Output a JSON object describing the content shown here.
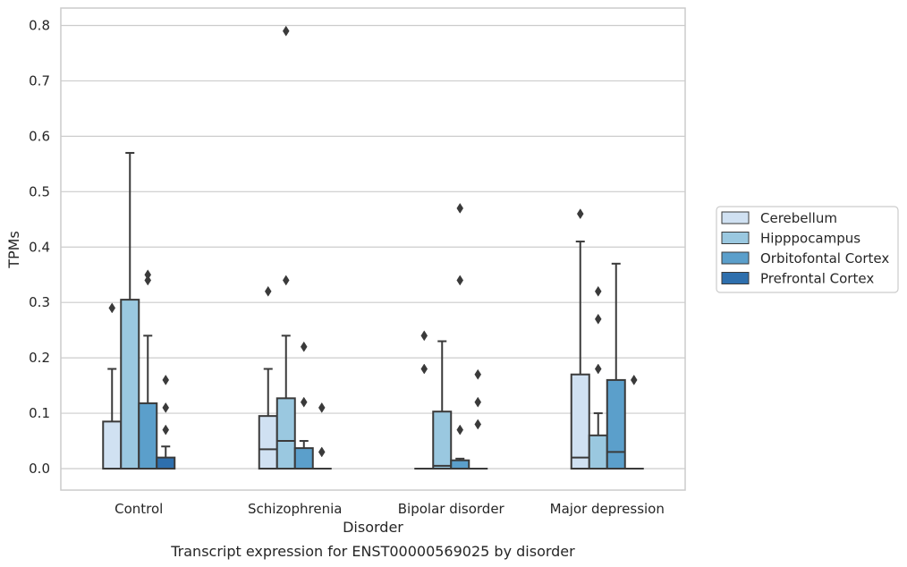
{
  "chart_data": {
    "type": "box",
    "xlabel": "Disorder",
    "ylabel": "TPMs",
    "caption": "Transcript expression for ENST00000569025 by disorder",
    "ylim": [
      -0.04,
      0.83
    ],
    "yticks": [
      "0.0",
      "0.1",
      "0.2",
      "0.3",
      "0.4",
      "0.5",
      "0.6",
      "0.7",
      "0.8"
    ],
    "grid": true,
    "legend_position": "right",
    "categories": [
      "Control",
      "Schizophrenia",
      "Bipolar disorder",
      "Major depression"
    ],
    "series": [
      {
        "name": "Cerebellum",
        "color": "#d0e1f2",
        "boxes": [
          {
            "q1": 0.0,
            "median": 0.0,
            "q3": 0.085,
            "whisker_low": 0.0,
            "whisker_high": 0.18,
            "outliers": [
              0.29
            ]
          },
          {
            "q1": 0.0,
            "median": 0.035,
            "q3": 0.095,
            "whisker_low": 0.0,
            "whisker_high": 0.18,
            "outliers": [
              0.32
            ]
          },
          {
            "q1": 0.0,
            "median": 0.0,
            "q3": 0.0,
            "whisker_low": 0.0,
            "whisker_high": 0.0,
            "outliers": [
              0.18,
              0.24
            ]
          },
          {
            "q1": 0.0,
            "median": 0.02,
            "q3": 0.17,
            "whisker_low": 0.0,
            "whisker_high": 0.41,
            "outliers": [
              0.46
            ]
          }
        ]
      },
      {
        "name": "Hipppocampus",
        "color": "#9ac8e0",
        "boxes": [
          {
            "q1": 0.0,
            "median": 0.0,
            "q3": 0.305,
            "whisker_low": 0.0,
            "whisker_high": 0.57,
            "outliers": []
          },
          {
            "q1": 0.0,
            "median": 0.05,
            "q3": 0.127,
            "whisker_low": 0.0,
            "whisker_high": 0.24,
            "outliers": [
              0.34,
              0.79
            ]
          },
          {
            "q1": 0.0,
            "median": 0.005,
            "q3": 0.103,
            "whisker_low": 0.0,
            "whisker_high": 0.23,
            "outliers": []
          },
          {
            "q1": 0.0,
            "median": 0.0,
            "q3": 0.06,
            "whisker_low": 0.0,
            "whisker_high": 0.1,
            "outliers": [
              0.18,
              0.27,
              0.32
            ]
          }
        ]
      },
      {
        "name": "Orbitofontal Cortex",
        "color": "#5b9fcb",
        "boxes": [
          {
            "q1": 0.0,
            "median": 0.0,
            "q3": 0.118,
            "whisker_low": 0.0,
            "whisker_high": 0.24,
            "outliers": [
              0.34,
              0.35
            ]
          },
          {
            "q1": 0.0,
            "median": 0.0,
            "q3": 0.037,
            "whisker_low": 0.0,
            "whisker_high": 0.05,
            "outliers": [
              0.12,
              0.22
            ]
          },
          {
            "q1": 0.0,
            "median": 0.0,
            "q3": 0.015,
            "whisker_low": 0.0,
            "whisker_high": 0.018,
            "outliers": [
              0.07,
              0.34,
              0.47
            ]
          },
          {
            "q1": 0.0,
            "median": 0.03,
            "q3": 0.16,
            "whisker_low": 0.0,
            "whisker_high": 0.37,
            "outliers": []
          }
        ]
      },
      {
        "name": "Prefrontal Cortex",
        "color": "#2e6fad",
        "boxes": [
          {
            "q1": 0.0,
            "median": 0.0,
            "q3": 0.02,
            "whisker_low": 0.0,
            "whisker_high": 0.04,
            "outliers": [
              0.07,
              0.11,
              0.16
            ]
          },
          {
            "q1": 0.0,
            "median": 0.0,
            "q3": 0.0,
            "whisker_low": 0.0,
            "whisker_high": 0.0,
            "outliers": [
              0.03,
              0.11
            ]
          },
          {
            "q1": 0.0,
            "median": 0.0,
            "q3": 0.0,
            "whisker_low": 0.0,
            "whisker_high": 0.0,
            "outliers": [
              0.08,
              0.12,
              0.17
            ]
          },
          {
            "q1": 0.0,
            "median": 0.0,
            "q3": 0.0,
            "whisker_low": 0.0,
            "whisker_high": 0.0,
            "outliers": [
              0.16
            ]
          }
        ]
      }
    ]
  }
}
